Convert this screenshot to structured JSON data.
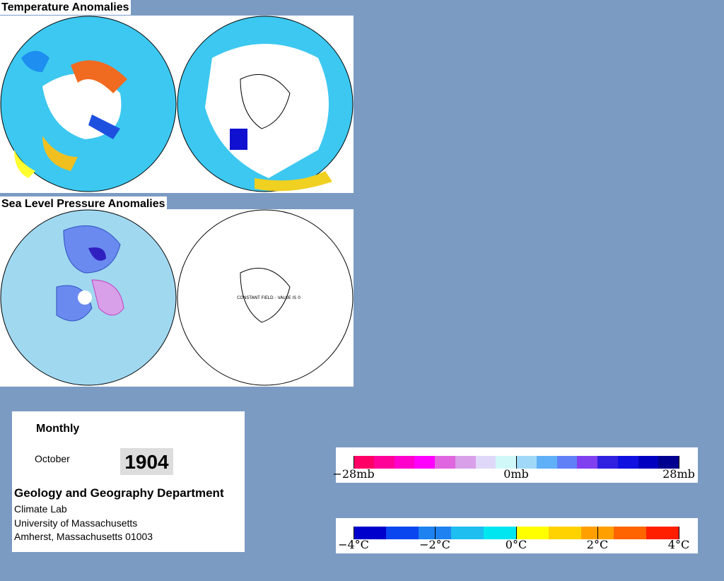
{
  "temperature_title": "Temperature Anomalies",
  "pressure_title": "Sea Level Pressure Anomalies",
  "constant_note": "CONSTANT FIELD - VALUE IS 0",
  "info": {
    "period": "Monthly",
    "month": "October",
    "year": "1904",
    "department": "Geology and Geography Department",
    "lab": "Climate Lab",
    "university": "University of Massachusetts",
    "address": "Amherst, Massachusetts 01003"
  },
  "pressure_legend": {
    "labels": [
      "−28mb",
      "0mb",
      "28mb"
    ],
    "colors": [
      "#ff0066",
      "#ff0099",
      "#ff00cc",
      "#ff00ff",
      "#e066e0",
      "#d8a0e8",
      "#e0d8f8",
      "#d0f8f8",
      "#a0d8f8",
      "#60b0f8",
      "#6080f8",
      "#8040f0",
      "#3020e0",
      "#1010e0",
      "#0000c0",
      "#000090"
    ]
  },
  "temperature_legend": {
    "labels": [
      "−4°C",
      "−2°C",
      "0°C",
      "2°C",
      "4°C"
    ],
    "colors": [
      "#0000cc",
      "#0a46f0",
      "#1e82f0",
      "#1ebef0",
      "#00e6f0",
      "#ffff00",
      "#ffd200",
      "#ffa000",
      "#ff6400",
      "#ff1e00"
    ]
  }
}
